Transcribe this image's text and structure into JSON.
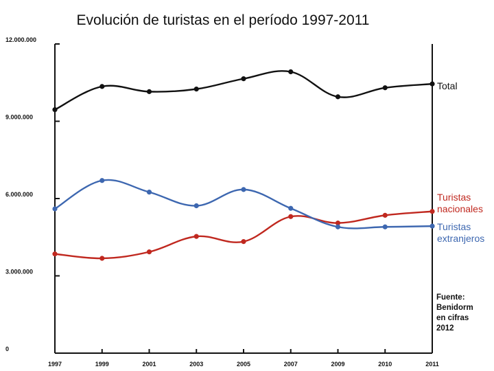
{
  "chart_data": {
    "type": "line",
    "title": "Evolución de turistas en el período 1997-2011",
    "xlabel": "",
    "ylabel": "",
    "x": [
      "1997",
      "1999",
      "2001",
      "2003",
      "2005",
      "2007",
      "2009",
      "2010",
      "2011"
    ],
    "ylim": [
      0,
      12000000
    ],
    "y_ticks": [
      "0",
      "3.000.000",
      "6.000.000",
      "9.000.000",
      "12.000.000"
    ],
    "grid": false,
    "series": [
      {
        "key": "total",
        "label_lines": [
          "Total"
        ],
        "color": "#111111",
        "values": [
          9450000,
          10350000,
          10150000,
          10250000,
          10650000,
          10920000,
          9950000,
          10300000,
          10450000
        ]
      },
      {
        "key": "nacionales",
        "label_lines": [
          "Turistas",
          "nacionales"
        ],
        "color": "#c0281f",
        "values": [
          3850000,
          3680000,
          3930000,
          4530000,
          4330000,
          5300000,
          5050000,
          5350000,
          5500000
        ]
      },
      {
        "key": "extranjeros",
        "label_lines": [
          "Turistas",
          "extranjeros"
        ],
        "color": "#3d67b0",
        "values": [
          5600000,
          6700000,
          6250000,
          5720000,
          6350000,
          5620000,
          4900000,
          4900000,
          4930000
        ]
      }
    ],
    "source_lines": [
      "Fuente:",
      "Benidorm",
      "en cifras",
      "2012"
    ]
  }
}
